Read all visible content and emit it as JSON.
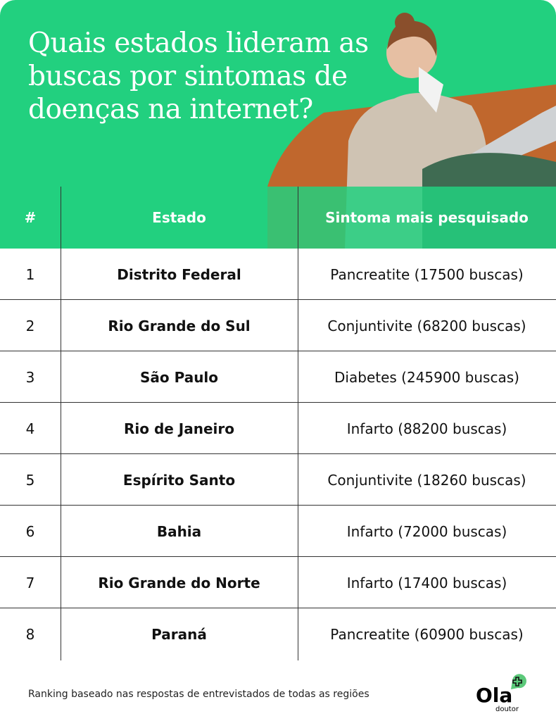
{
  "title": "Quais estados lideram as buscas por sintomas de doenças na internet?",
  "colors": {
    "accent": "#22d07f",
    "text": "#111111"
  },
  "table": {
    "headers": [
      "#",
      "Estado",
      "Sintoma mais pesquisado"
    ],
    "rows": [
      {
        "rank": "1",
        "state": "Distrito Federal",
        "symptom": "Pancreatite (17500 buscas)"
      },
      {
        "rank": "2",
        "state": "Rio Grande do Sul",
        "symptom": "Conjuntivite (68200 buscas)"
      },
      {
        "rank": "3",
        "state": "São Paulo",
        "symptom": "Diabetes (245900 buscas)"
      },
      {
        "rank": "4",
        "state": "Rio de Janeiro",
        "symptom": "Infarto (88200 buscas)"
      },
      {
        "rank": "5",
        "state": "Espírito Santo",
        "symptom": "Conjuntivite (18260 buscas)"
      },
      {
        "rank": "6",
        "state": "Bahia",
        "symptom": "Infarto (72000 buscas)"
      },
      {
        "rank": "7",
        "state": "Rio Grande do Norte",
        "symptom": "Infarto (17400 buscas)"
      },
      {
        "rank": "8",
        "state": "Paraná",
        "symptom": "Pancreatite (60900 buscas)"
      }
    ]
  },
  "footer": "Ranking baseado nas respostas de entrevistados de todas as regiões",
  "logo": {
    "name": "Ola",
    "sub": "doutor"
  }
}
